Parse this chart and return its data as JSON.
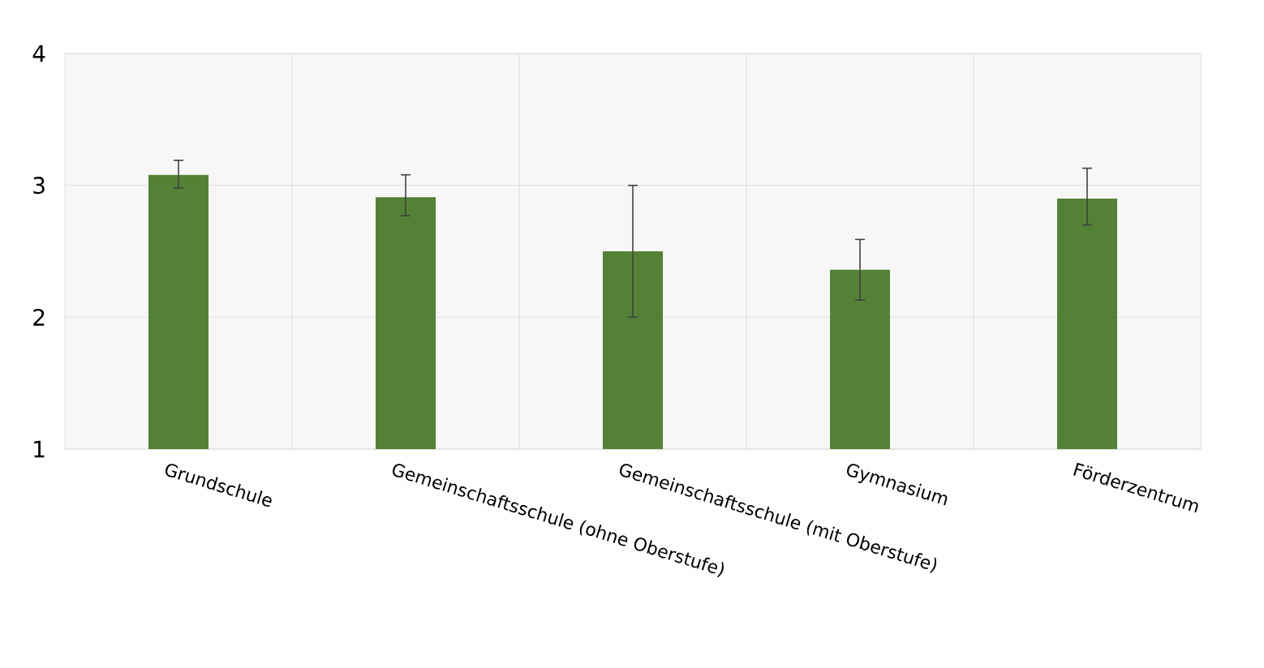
{
  "chart_data": {
    "type": "bar",
    "categories": [
      "Grundschule",
      "Gemeinschaftsschule (ohne Oberstufe)",
      "Gemeinschaftsschule (mit Oberstufe)",
      "Gymnasium",
      "Förderzentrum"
    ],
    "values": [
      3.08,
      2.91,
      2.5,
      2.36,
      2.9
    ],
    "errors": [
      [
        2.98,
        3.19
      ],
      [
        2.77,
        3.08
      ],
      [
        2.0,
        3.0
      ],
      [
        2.13,
        2.59
      ],
      [
        2.7,
        3.13
      ]
    ],
    "color": "#538135",
    "ylim": [
      1,
      4
    ],
    "yticks": [
      1,
      2,
      3,
      4
    ],
    "grid": true
  }
}
